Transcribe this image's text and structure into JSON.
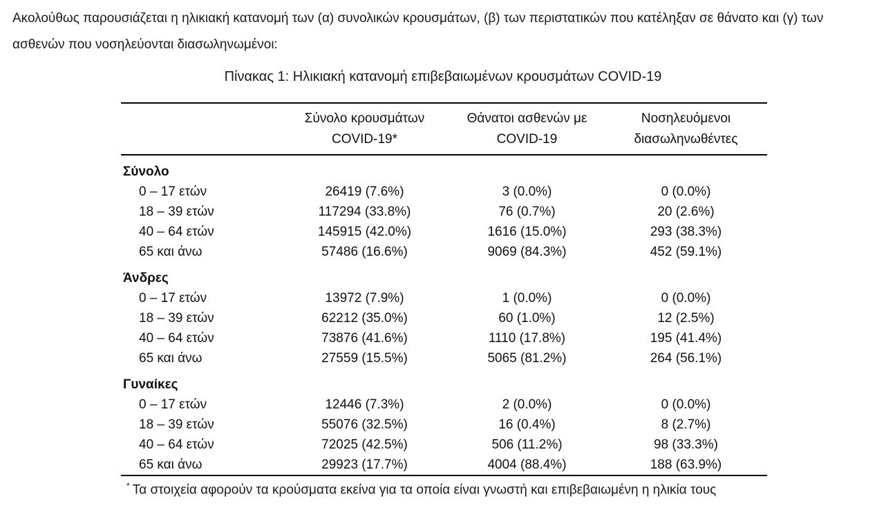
{
  "intro": {
    "line1": "Ακολούθως παρουσιάζεται η ηλικιακή κατανομή των (α) συνολικών κρουσμάτων, (β) των περιστατικών που κατέληξαν σε θάνατο και (γ) των",
    "line2": "ασθενών που νοσηλεύονται διασωληνωμένοι:"
  },
  "table": {
    "title": "Πίνακας 1: Ηλικιακή κατανομή επιβεβαιωμένων κρουσμάτων COVID-19",
    "columns": [
      {
        "line1": "",
        "line2": ""
      },
      {
        "line1": "Σύνολο κρουσμάτων",
        "line2": "COVID-19*"
      },
      {
        "line1": "Θάνατοι ασθενών με",
        "line2": "COVID-19"
      },
      {
        "line1": "Νοσηλευόμενοι",
        "line2": "διασωληνωθέντες"
      }
    ],
    "sections": [
      {
        "label": "Σύνολο",
        "rows": [
          {
            "age": "0 – 17 ετών",
            "cases": "26419 (7.6%)",
            "deaths": "3 (0.0%)",
            "intubated": "0 (0.0%)"
          },
          {
            "age": "18 – 39 ετών",
            "cases": "117294 (33.8%)",
            "deaths": "76 (0.7%)",
            "intubated": "20 (2.6%)"
          },
          {
            "age": "40 – 64 ετών",
            "cases": "145915 (42.0%)",
            "deaths": "1616 (15.0%)",
            "intubated": "293 (38.3%)"
          },
          {
            "age": "65 και άνω",
            "cases": "57486 (16.6%)",
            "deaths": "9069 (84.3%)",
            "intubated": "452 (59.1%)"
          }
        ]
      },
      {
        "label": "Άνδρες",
        "rows": [
          {
            "age": "0 – 17 ετών",
            "cases": "13972 (7.9%)",
            "deaths": "1 (0.0%)",
            "intubated": "0 (0.0%)"
          },
          {
            "age": "18 – 39 ετών",
            "cases": "62212 (35.0%)",
            "deaths": "60 (1.0%)",
            "intubated": "12 (2.5%)"
          },
          {
            "age": "40 – 64 ετών",
            "cases": "73876 (41.6%)",
            "deaths": "1110 (17.8%)",
            "intubated": "195 (41.4%)"
          },
          {
            "age": "65 και άνω",
            "cases": "27559 (15.5%)",
            "deaths": "5065 (81.2%)",
            "intubated": "264 (56.1%)"
          }
        ]
      },
      {
        "label": "Γυναίκες",
        "rows": [
          {
            "age": "0 – 17 ετών",
            "cases": "12446 (7.3%)",
            "deaths": "2 (0.0%)",
            "intubated": "0 (0.0%)"
          },
          {
            "age": "18 – 39 ετών",
            "cases": "55076 (32.5%)",
            "deaths": "16 (0.4%)",
            "intubated": "8 (2.7%)"
          },
          {
            "age": "40 – 64 ετών",
            "cases": "72025 (42.5%)",
            "deaths": "506 (11.2%)",
            "intubated": "98 (33.3%)"
          },
          {
            "age": "65 και άνω",
            "cases": "29923 (17.7%)",
            "deaths": "4004 (88.4%)",
            "intubated": "188 (63.9%)"
          }
        ]
      }
    ],
    "footnote_marker": "*",
    "footnote": "Τα στοιχεία αφορούν τα κρούσματα εκείνα για τα οποία είναι γνωστή και επιβεβαιωμένη η ηλικία τους"
  }
}
